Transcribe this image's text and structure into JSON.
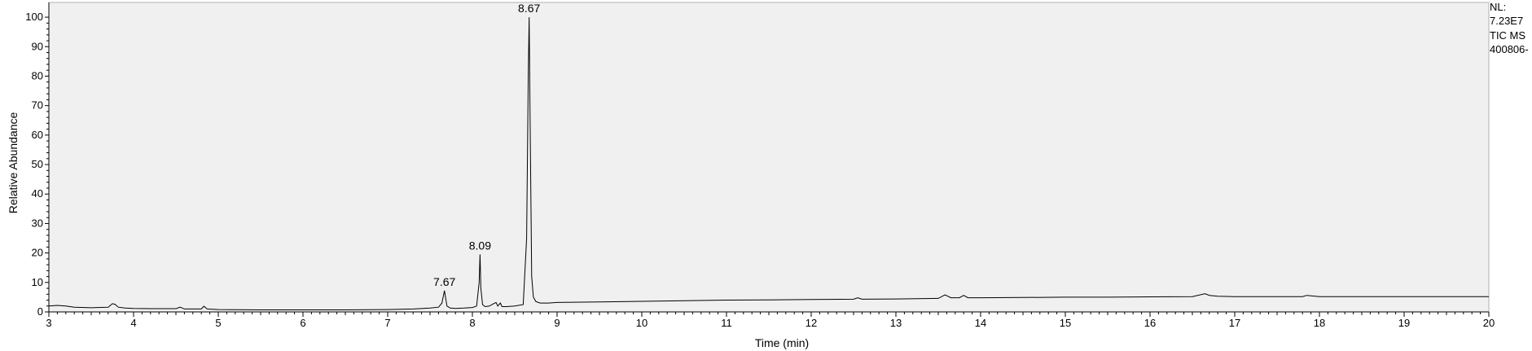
{
  "info": {
    "nl_label": "NL:",
    "nl_value": "7.23E7",
    "scan_type": "TIC  MS",
    "file_name": "400806-"
  },
  "chart_data": {
    "type": "line",
    "title": "",
    "xlabel": "Time (min)",
    "ylabel": "Relative Abundance",
    "xlim": [
      3,
      20
    ],
    "ylim": [
      0,
      105
    ],
    "x_ticks": [
      3,
      4,
      5,
      6,
      7,
      8,
      9,
      10,
      11,
      12,
      13,
      14,
      15,
      16,
      17,
      18,
      19,
      20
    ],
    "y_ticks": [
      0,
      10,
      20,
      30,
      40,
      50,
      60,
      70,
      80,
      90,
      100
    ],
    "grid": false,
    "line_color": "#000000",
    "background_color": "#f0f0f0",
    "series": [
      {
        "values_x": [
          3.0,
          3.1,
          3.2,
          3.3,
          3.5,
          3.7,
          3.75,
          3.78,
          3.82,
          3.9,
          4.0,
          4.2,
          4.5,
          4.55,
          4.6,
          4.8,
          4.83,
          4.87,
          5.0,
          5.5,
          6.0,
          6.5,
          7.0,
          7.3,
          7.5,
          7.6,
          7.64,
          7.67,
          7.7,
          7.74,
          7.8,
          7.9,
          8.0,
          8.05,
          8.08,
          8.09,
          8.1,
          8.12,
          8.15,
          8.2,
          8.25,
          8.28,
          8.3,
          8.33,
          8.35,
          8.4,
          8.5,
          8.6,
          8.64,
          8.66,
          8.67,
          8.68,
          8.7,
          8.72,
          8.75,
          8.8,
          8.9,
          9.0,
          9.5,
          10.0,
          10.5,
          11.0,
          11.5,
          12.0,
          12.5,
          12.55,
          12.6,
          13.0,
          13.5,
          13.58,
          13.65,
          13.75,
          13.8,
          13.85,
          14.0,
          14.5,
          15.0,
          15.5,
          16.0,
          16.5,
          16.65,
          16.7,
          16.8,
          17.0,
          17.5,
          17.8,
          17.85,
          18.0,
          18.5,
          19.0,
          19.5,
          20.0
        ],
        "values_y": [
          2.0,
          2.2,
          2.0,
          1.6,
          1.4,
          1.6,
          2.8,
          2.6,
          1.6,
          1.3,
          1.2,
          1.1,
          1.1,
          1.6,
          1.0,
          1.0,
          1.9,
          1.0,
          0.8,
          0.7,
          0.7,
          0.7,
          0.8,
          1.0,
          1.3,
          1.6,
          3.0,
          7.2,
          2.0,
          1.3,
          1.2,
          1.3,
          1.5,
          2.0,
          10.0,
          19.5,
          8.0,
          2.5,
          1.8,
          2.0,
          2.8,
          3.2,
          2.0,
          3.0,
          1.8,
          1.8,
          2.0,
          2.5,
          25.0,
          80.0,
          100.0,
          70.0,
          12.0,
          5.0,
          3.5,
          3.0,
          3.0,
          3.2,
          3.4,
          3.6,
          3.8,
          4.0,
          4.1,
          4.2,
          4.3,
          4.8,
          4.3,
          4.4,
          4.6,
          5.8,
          4.8,
          4.8,
          5.6,
          4.8,
          4.8,
          4.9,
          5.0,
          5.0,
          5.1,
          5.2,
          6.2,
          5.6,
          5.3,
          5.2,
          5.2,
          5.2,
          5.6,
          5.2,
          5.2,
          5.2,
          5.2,
          5.2
        ]
      }
    ],
    "peak_labels": [
      {
        "x": 7.67,
        "y": 7.2,
        "text": "7.67"
      },
      {
        "x": 8.09,
        "y": 19.5,
        "text": "8.09"
      },
      {
        "x": 8.67,
        "y": 100,
        "text": "8.67"
      }
    ]
  }
}
